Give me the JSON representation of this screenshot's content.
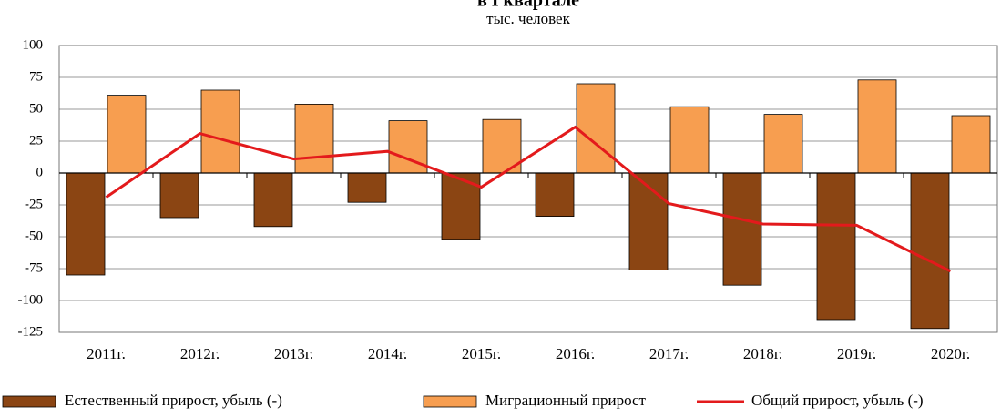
{
  "chart_data": {
    "type": "bar",
    "title": "в I квартале",
    "subtitle": "тыс. человек",
    "categories": [
      "2011г.",
      "2012г.",
      "2013г.",
      "2014г.",
      "2015г.",
      "2016г.",
      "2017г.",
      "2018г.",
      "2019г.",
      "2020г."
    ],
    "series": [
      {
        "name": "Естественный прирост, убыль (-)",
        "color": "#8b4513",
        "type": "bar",
        "values": [
          -80,
          -35,
          -42,
          -23,
          -52,
          -34,
          -76,
          -88,
          -115,
          -122
        ]
      },
      {
        "name": "Миграционный прирост",
        "color": "#f79e50",
        "type": "bar",
        "values": [
          61,
          65,
          54,
          41,
          42,
          70,
          52,
          46,
          73,
          45
        ]
      },
      {
        "name": "Общий прирост, убыль (-)",
        "color": "#e31a1c",
        "type": "line",
        "values": [
          -19,
          31,
          11,
          17,
          -11,
          36,
          -24,
          -40,
          -41,
          -77
        ]
      }
    ],
    "ylim": [
      -125,
      100
    ],
    "yticks": [
      -125,
      -100,
      -75,
      -50,
      -25,
      0,
      25,
      50,
      75,
      100
    ],
    "grid": true,
    "legend": "bottom"
  }
}
